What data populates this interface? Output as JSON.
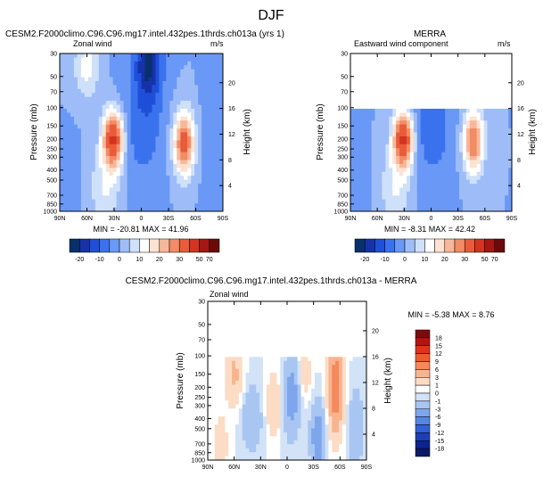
{
  "page": {
    "title": "DJF"
  },
  "colorbar_levels_full": [
    "-20",
    "-10",
    "0",
    "10",
    "20",
    "30",
    "50",
    "70"
  ],
  "colorbar_levels_diff": [
    "18",
    "15",
    "12",
    "9",
    "6",
    "3",
    "1",
    "0",
    "-1",
    "-3",
    "-6",
    "-9",
    "-12",
    "-15",
    "-18"
  ],
  "colors": {
    "full": [
      "#08306b",
      "#1532a8",
      "#1f4fd8",
      "#3a72ee",
      "#6a98f6",
      "#9ebdf8",
      "#cfe0fa",
      "#ffffff",
      "#fde2d2",
      "#f7b89a",
      "#f28c66",
      "#ea5b3a",
      "#d23420",
      "#a61612",
      "#6b0a0a"
    ],
    "diff": [
      "#7d0b0b",
      "#b3140f",
      "#dd3418",
      "#f05a32",
      "#f6885c",
      "#f9b48f",
      "#fcdcc5",
      "#ffffff",
      "#d2e2f7",
      "#a9c6f2",
      "#7ea6ec",
      "#5486e6",
      "#3160d8",
      "#1c3fb8",
      "#0d2490"
    ]
  },
  "chart_data": [
    {
      "type": "heatmap",
      "title_left": "CESM2.F2000climo.C96.C96.mg17.intel.432pes.1thrds.ch013a (yrs 1)",
      "subtitle_left": "Zonal wind",
      "units": "m/s",
      "ylabel": "Pressure (mb)",
      "ylabel_right": "Height (km)",
      "x_ticks": [
        "90N",
        "60N",
        "30N",
        "0",
        "30S",
        "60S",
        "90S"
      ],
      "y_ticks": [
        "30",
        "50",
        "70",
        "100",
        "150",
        "200",
        "250",
        "300",
        "400",
        "500",
        "700",
        "850",
        "1000"
      ],
      "y_ticks_right": [
        "20",
        "16",
        "12",
        "8",
        "4"
      ],
      "min_max": "MIN = -20.81   MAX = 41.96",
      "jets": [
        {
          "lat": 32,
          "pressure": 200,
          "value": 41.96
        },
        {
          "lat": -48,
          "pressure": 220,
          "value": 33
        }
      ],
      "min_value": -20.81,
      "max_value": 41.96
    },
    {
      "type": "heatmap",
      "title_left": "MERRA",
      "subtitle_left": "Eastward wind component",
      "units": "m/s",
      "ylabel": "Pressure (mb)",
      "ylabel_right": "Height (km)",
      "x_ticks": [
        "90N",
        "60N",
        "30N",
        "0",
        "30S",
        "60S",
        "90S"
      ],
      "y_ticks": [
        "30",
        "50",
        "70",
        "100",
        "150",
        "200",
        "250",
        "300",
        "400",
        "500",
        "700",
        "850",
        "1000"
      ],
      "y_ticks_right": [
        "20",
        "16",
        "12",
        "8",
        "4"
      ],
      "min_max": "MIN = -8.31   MAX = 42.42",
      "data_top_mb": 100,
      "min_value": -8.31,
      "max_value": 42.42
    },
    {
      "type": "heatmap",
      "title": "CESM2.F2000climo.C96.C96.mg17.intel.432pes.1thrds.ch013a - MERRA",
      "subtitle_left": "Zonal wind",
      "ylabel": "Pressure (mb)",
      "ylabel_right": "Height (km)",
      "x_ticks": [
        "90N",
        "60N",
        "30N",
        "0",
        "30S",
        "60S",
        "90S"
      ],
      "y_ticks": [
        "30",
        "50",
        "70",
        "100",
        "150",
        "200",
        "250",
        "300",
        "400",
        "500",
        "700",
        "850",
        "1000"
      ],
      "y_ticks_right": [
        "20",
        "16",
        "12",
        "8",
        "4"
      ],
      "min_max": "MIN = -5.38   MAX =  8.76",
      "data_top_mb": 100,
      "min_value": -5.38,
      "max_value": 8.76
    }
  ]
}
